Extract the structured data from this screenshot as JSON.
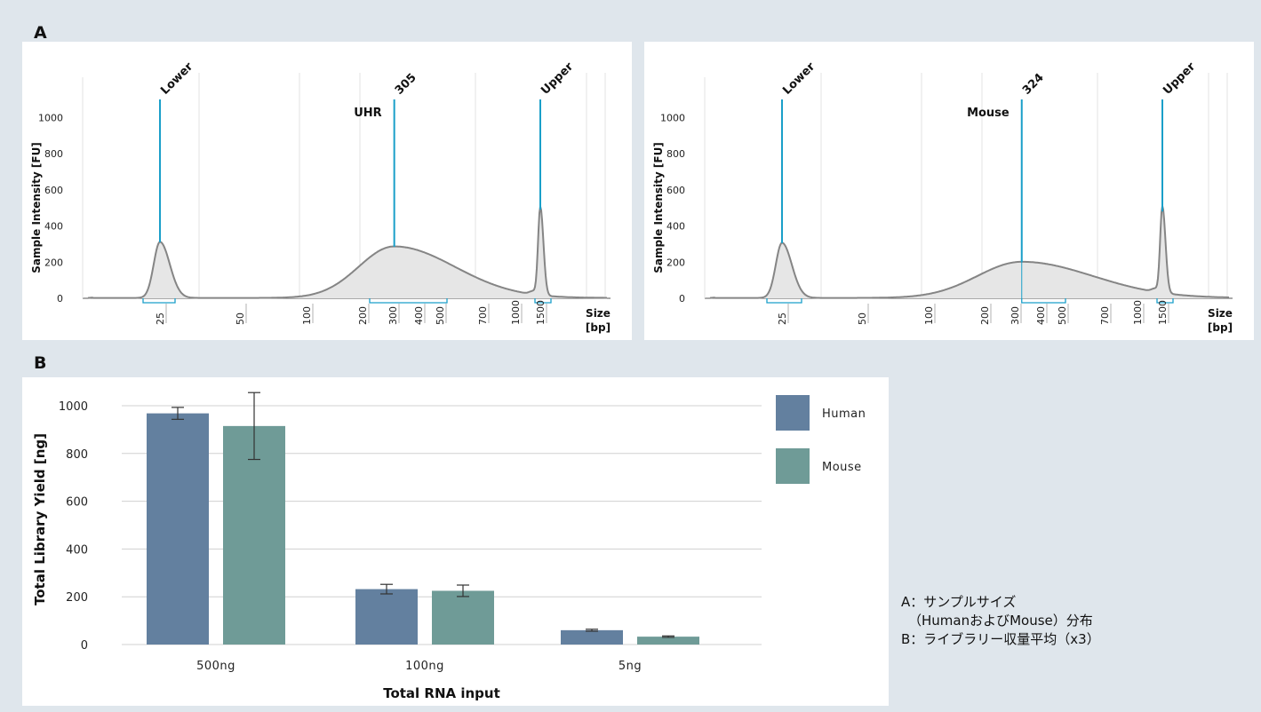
{
  "panels": {
    "a": "A",
    "b": "B"
  },
  "caption": {
    "line1": "A：サンプルサイズ",
    "line2": "（HumanおよびMouse）分布",
    "line3": "B：ライブラリー収量平均（x3）"
  },
  "colors": {
    "marker": "#1a9fc9",
    "trace": "#858585",
    "fill": "#e6e6e6",
    "human": "#63809f",
    "mouse": "#6f9b97",
    "grid": "#d0d0d0"
  },
  "chart_data": [
    {
      "type": "area",
      "title": "UHR",
      "ylabel": "Sample Intensity [FU]",
      "xlabel": "Size",
      "xunit": "[bp]",
      "ylim": [
        0,
        1100
      ],
      "y_ticks": [
        0,
        200,
        400,
        600,
        800,
        1000
      ],
      "x_ticks": [
        "25",
        "50",
        "100",
        "200",
        "300",
        "400",
        "500",
        "700",
        "1000",
        "1500"
      ],
      "markers": [
        {
          "label": "Lower",
          "x": "25"
        },
        {
          "label": "305",
          "x": "305"
        },
        {
          "label": "Upper",
          "x": "1500"
        }
      ],
      "peaks": [
        {
          "label": "Lower",
          "x": "25",
          "y": 310
        },
        {
          "label": "305",
          "x": "305",
          "y": 285
        },
        {
          "label": "Upper",
          "x": "1500",
          "y": 490
        }
      ],
      "grid": true
    },
    {
      "type": "area",
      "title": "Mouse",
      "ylabel": "Sample Intensity [FU]",
      "xlabel": "Size",
      "xunit": "[bp]",
      "ylim": [
        0,
        1100
      ],
      "y_ticks": [
        0,
        200,
        400,
        600,
        800,
        1000
      ],
      "x_ticks": [
        "25",
        "50",
        "100",
        "200",
        "300",
        "400",
        "500",
        "700",
        "1000",
        "1500"
      ],
      "markers": [
        {
          "label": "Lower",
          "x": "25"
        },
        {
          "label": "324",
          "x": "324"
        },
        {
          "label": "Upper",
          "x": "1500"
        }
      ],
      "peaks": [
        {
          "label": "Lower",
          "x": "25",
          "y": 305
        },
        {
          "label": "324",
          "x": "324",
          "y": 200
        },
        {
          "label": "Upper",
          "x": "1500",
          "y": 480
        }
      ],
      "grid": true
    },
    {
      "type": "bar",
      "xlabel": "Total RNA input",
      "ylabel": "Total Library Yield [ng]",
      "ylim": [
        0,
        1050
      ],
      "y_ticks": [
        0,
        200,
        400,
        600,
        800,
        1000
      ],
      "categories": [
        "500ng",
        "100ng",
        "5ng"
      ],
      "series": [
        {
          "name": "Human",
          "values": [
            968,
            232,
            60
          ],
          "errors": [
            25,
            20,
            4
          ]
        },
        {
          "name": "Mouse",
          "values": [
            915,
            225,
            33
          ],
          "errors": [
            140,
            24,
            3
          ]
        }
      ],
      "legend": "top-right",
      "grid": true
    }
  ]
}
